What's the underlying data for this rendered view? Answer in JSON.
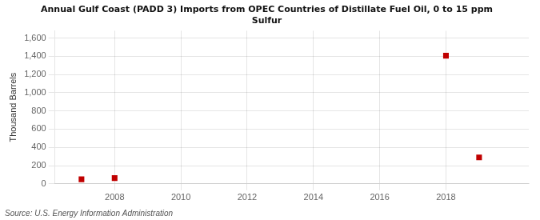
{
  "chart_data": {
    "type": "scatter",
    "title": "Annual Gulf Coast (PADD 3) Imports from OPEC Countries of Distillate Fuel Oil, 0 to 15 ppm\nSulfur",
    "ylabel": "Thousand Barrels",
    "source": "Source: U.S. Energy Information Administration",
    "x": [
      2007,
      2008,
      2018,
      2019
    ],
    "values": [
      50,
      63,
      1406,
      290
    ],
    "color": "#c00000",
    "marker": "square",
    "xlim": [
      2006.2,
      2020.5
    ],
    "xticks": [
      2008,
      2010,
      2012,
      2014,
      2016,
      2018
    ],
    "ylim": [
      0,
      1680
    ],
    "yticks": [
      0,
      200,
      400,
      600,
      800,
      {
        "value": 1000,
        "label": "1,000"
      },
      {
        "value": 1200,
        "label": "1,200"
      },
      {
        "value": 1400,
        "label": "1,400"
      },
      {
        "value": 1600,
        "label": "1,600"
      }
    ],
    "grid": true
  }
}
